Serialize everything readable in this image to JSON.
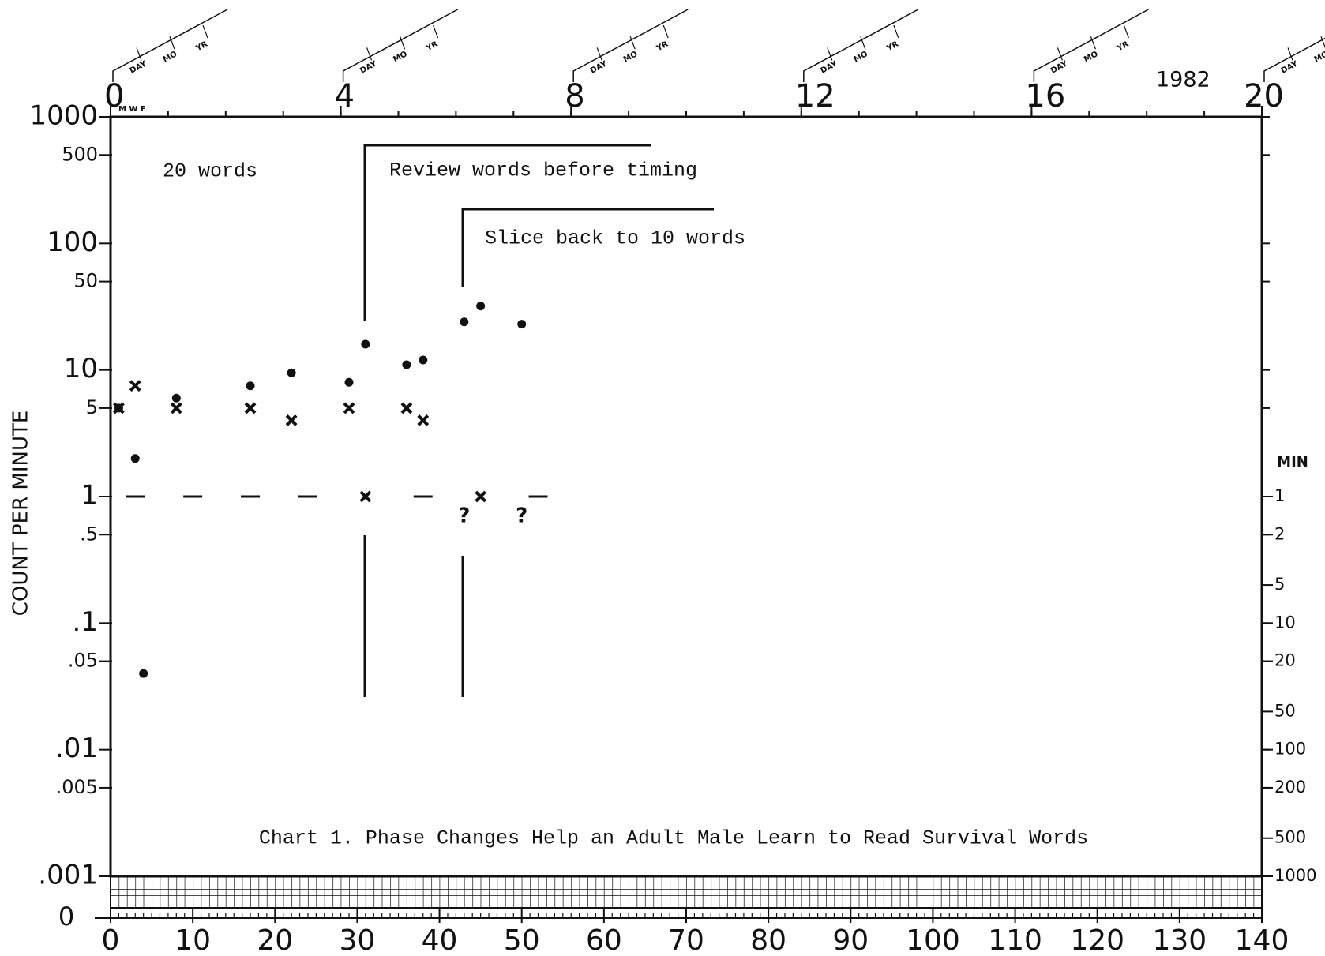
{
  "chart_data": {
    "type": "scatter",
    "caption": "Chart 1.  Phase Changes Help an Adult Male Learn to Read Survival Words",
    "y_label": "COUNT PER MINUTE",
    "y2_label": "MIN",
    "year": "1982",
    "weekdays": "M W F",
    "date_stub": [
      "DAY",
      "MO",
      "YR"
    ],
    "zero_label": "0",
    "annotations": [
      "20 words",
      "Review words before timing",
      "Slice back to 10 words"
    ],
    "xlim": [
      0,
      140
    ],
    "xticks": [
      0,
      10,
      20,
      30,
      40,
      50,
      60,
      70,
      80,
      90,
      100,
      110,
      120,
      130,
      140
    ],
    "x2lim": [
      0,
      20
    ],
    "x2ticks": [
      0,
      4,
      8,
      12,
      16,
      20
    ],
    "ylim": [
      0.001,
      1000
    ],
    "ylog": true,
    "yticks": [
      1000,
      500,
      100,
      50,
      10,
      5,
      1,
      {
        "value": 0.5,
        "label": ".5"
      },
      {
        "value": 0.1,
        "label": ".1"
      },
      {
        "value": 0.05,
        "label": ".05"
      },
      {
        "value": 0.01,
        "label": ".01"
      },
      {
        "value": 0.005,
        "label": ".005"
      },
      {
        "value": 0.001,
        "label": ".001"
      }
    ],
    "y2lim": [
      1000,
      0.001
    ],
    "y2ticks": [
      1,
      2,
      5,
      10,
      20,
      50,
      100,
      200,
      500,
      1000
    ],
    "color": "#111111",
    "series": [
      {
        "marker": "dot",
        "x": [
          1,
          3,
          4,
          8,
          17,
          22,
          29,
          31,
          36,
          38,
          43,
          45,
          50
        ],
        "values": [
          5,
          2,
          0.04,
          6,
          7.5,
          9.5,
          8,
          16,
          11,
          12,
          24,
          32,
          23
        ]
      },
      {
        "marker": "cross",
        "x": [
          1,
          3,
          8,
          17,
          22,
          29,
          31,
          36,
          38,
          45
        ],
        "values": [
          5,
          7.5,
          5,
          5,
          4,
          5,
          1,
          5,
          4,
          1
        ]
      },
      {
        "marker": "?",
        "x": [
          43,
          50
        ],
        "values": [
          0.7,
          0.7
        ]
      },
      {
        "marker": "dash",
        "x": [
          3,
          10,
          17,
          24,
          38,
          52
        ],
        "values": [
          1,
          1,
          1,
          1,
          1,
          1
        ]
      }
    ]
  }
}
